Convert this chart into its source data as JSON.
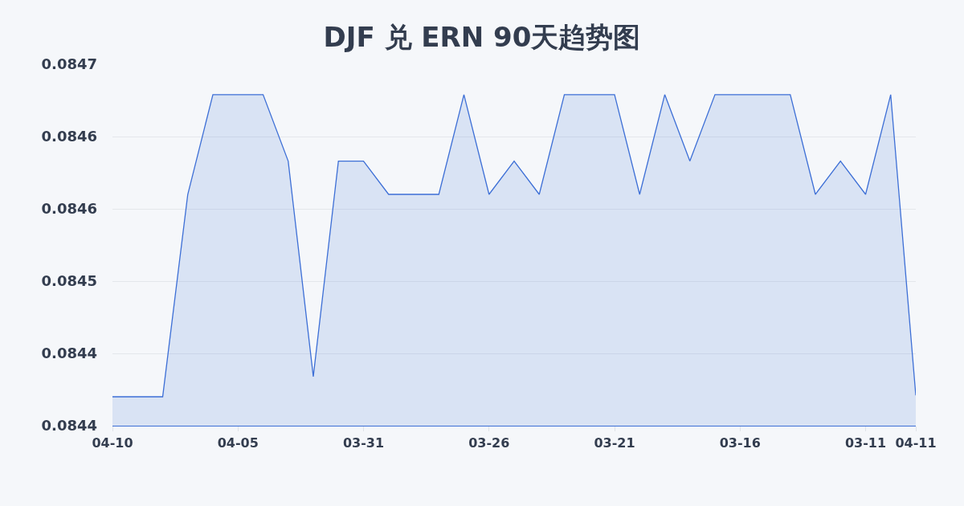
{
  "chart_data": {
    "type": "area",
    "title": "DJF 兑 ERN 90天趋势图",
    "categories": [
      "04-10",
      null,
      null,
      null,
      null,
      "04-05",
      null,
      null,
      null,
      null,
      "03-31",
      null,
      null,
      null,
      null,
      "03-26",
      null,
      null,
      null,
      null,
      "03-21",
      null,
      null,
      null,
      null,
      "03-16",
      null,
      null,
      null,
      null,
      "03-11",
      null,
      "04-11"
    ],
    "values": [
      0.08442,
      0.08442,
      0.08442,
      0.08456,
      0.084629,
      0.084629,
      0.084629,
      0.084583,
      0.084434,
      0.084583,
      0.084583,
      0.08456,
      0.08456,
      0.08456,
      0.084629,
      0.08456,
      0.084583,
      0.08456,
      0.084629,
      0.084629,
      0.084629,
      0.08456,
      0.084629,
      0.084583,
      0.084629,
      0.084629,
      0.084629,
      0.084629,
      0.08456,
      0.084583,
      0.08456,
      0.084629,
      0.084421
    ],
    "color": "#3d6fd6",
    "ylim": [
      0.0844,
      0.08465
    ],
    "yticks": [
      {
        "value": 0.0844,
        "label": "0.0844"
      },
      {
        "value": 0.08445,
        "label": "0.0844"
      },
      {
        "value": 0.0845,
        "label": "0.0845"
      },
      {
        "value": 0.08455,
        "label": "0.0846"
      },
      {
        "value": 0.0846,
        "label": "0.0846"
      },
      {
        "value": 0.08465,
        "label": "0.0847"
      }
    ],
    "grid": "y"
  }
}
